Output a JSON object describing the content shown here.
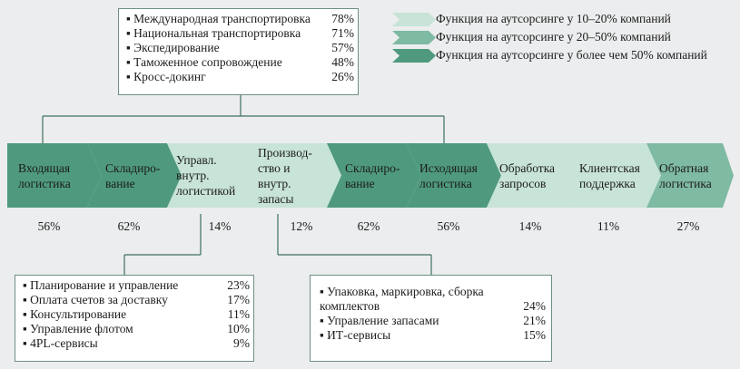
{
  "colors": {
    "light": "#c8e3d8",
    "medium": "#7fbaa3",
    "dark": "#4f9a7e",
    "connector": "#3d6f62"
  },
  "top_box": {
    "items": [
      {
        "label": "Международная транспортировка",
        "percent": "78%"
      },
      {
        "label": "Национальная транспортировка",
        "percent": "71%"
      },
      {
        "label": "Экспедирование",
        "percent": "57%"
      },
      {
        "label": "Таможенное сопровождение",
        "percent": "48%"
      },
      {
        "label": "Кросс-докинг",
        "percent": "26%"
      }
    ]
  },
  "legend": [
    {
      "label": "Функция на аутсорсинге у 10–20% компаний",
      "color": "#c8e3d8"
    },
    {
      "label": "Функция на аутсорсинге у 20–50% компаний",
      "color": "#7fbaa3"
    },
    {
      "label": "Функция на аутсорсинге у более чем 50% компаний",
      "color": "#4f9a7e"
    }
  ],
  "chain": [
    {
      "label": "Входящая логистика",
      "percent": "56%",
      "level": "dark"
    },
    {
      "label": "Складиро-вание",
      "percent": "62%",
      "level": "dark"
    },
    {
      "label": "Управл. внутр. логистикой",
      "percent": "14%",
      "level": "light"
    },
    {
      "label": "Производ-ство и внутр. запасы",
      "percent": "12%",
      "level": "light"
    },
    {
      "label": "Складиро-вание",
      "percent": "62%",
      "level": "dark"
    },
    {
      "label": "Исходящая логистика",
      "percent": "56%",
      "level": "dark"
    },
    {
      "label": "Обработка запросов",
      "percent": "14%",
      "level": "light"
    },
    {
      "label": "Клиентская поддержка",
      "percent": "11%",
      "level": "light"
    },
    {
      "label": "Обратная логистика",
      "percent": "27%",
      "level": "medium"
    }
  ],
  "bottom_left_box": {
    "items": [
      {
        "label": "Планирование и управление",
        "percent": "23%"
      },
      {
        "label": "Оплата счетов за доставку",
        "percent": "17%"
      },
      {
        "label": "Консультирование",
        "percent": "11%"
      },
      {
        "label": "Управление флотом",
        "percent": "10%"
      },
      {
        "label": "4PL-сервисы",
        "percent": "9%"
      }
    ]
  },
  "bottom_right_box": {
    "items": [
      {
        "label": "Упаковка, маркировка, сборка комплектов",
        "percent": "24%"
      },
      {
        "label": "Управление запасами",
        "percent": "21%"
      },
      {
        "label": "ИТ-сервисы",
        "percent": "15%"
      }
    ]
  }
}
